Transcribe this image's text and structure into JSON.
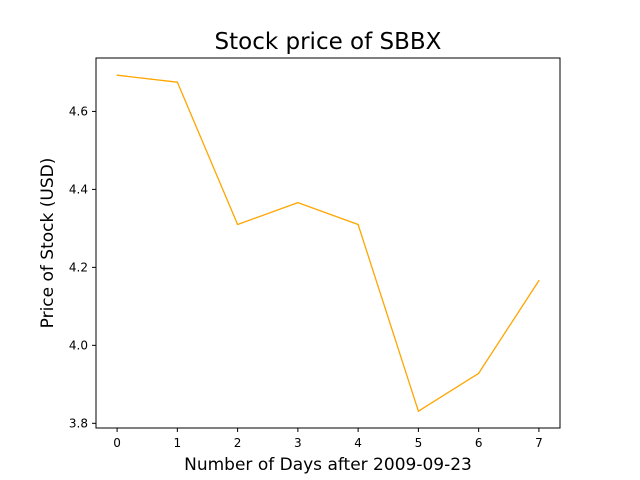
{
  "chart_data": {
    "type": "line",
    "title": "Stock price of SBBX",
    "xlabel": "Number of Days after 2009-09-23",
    "ylabel": "Price of Stock (USD)",
    "x": [
      0,
      1,
      2,
      3,
      4,
      5,
      6,
      7
    ],
    "series": [
      {
        "values": [
          4.693,
          4.675,
          4.31,
          4.366,
          4.31,
          3.831,
          3.928,
          4.166
        ],
        "color": "#FFA500"
      }
    ],
    "xlim": [
      -0.35,
      7.35
    ],
    "ylim": [
      3.788,
      4.737
    ],
    "xticks": [
      0,
      1,
      2,
      3,
      4,
      5,
      6,
      7
    ],
    "xtick_labels": [
      "0",
      "1",
      "2",
      "3",
      "4",
      "5",
      "6",
      "7"
    ],
    "yticks": [
      3.8,
      4.0,
      4.2,
      4.4,
      4.6
    ],
    "ytick_labels": [
      "3.8",
      "4.0",
      "4.2",
      "4.4",
      "4.6"
    ],
    "grid": false,
    "legend": false
  }
}
